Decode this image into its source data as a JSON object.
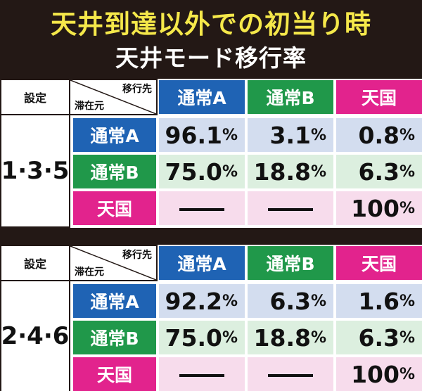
{
  "title_line1": "天井到達以外での初当り時",
  "title_line2": "天井モード移行率",
  "setting_header": "設定",
  "corner_to": "移行先",
  "corner_from": "滞在元",
  "columns": [
    "通常A",
    "通常B",
    "天国"
  ],
  "colors": {
    "blue": "#1f63b4",
    "green": "#20984a",
    "pink": "#e2238d"
  },
  "tables": [
    {
      "setting": "1·3·5",
      "rows": [
        {
          "label": "通常A",
          "values": [
            "96.1",
            "3.1",
            "0.8"
          ]
        },
        {
          "label": "通常B",
          "values": [
            "75.0",
            "18.8",
            "6.3"
          ]
        },
        {
          "label": "天国",
          "values": [
            "――",
            "――",
            "100"
          ]
        }
      ]
    },
    {
      "setting": "2·4·6",
      "rows": [
        {
          "label": "通常A",
          "values": [
            "92.2",
            "6.3",
            "1.6"
          ]
        },
        {
          "label": "通常B",
          "values": [
            "75.0",
            "18.8",
            "6.3"
          ]
        },
        {
          "label": "天国",
          "values": [
            "――",
            "――",
            "100"
          ]
        }
      ]
    }
  ],
  "percent_sign": "%"
}
